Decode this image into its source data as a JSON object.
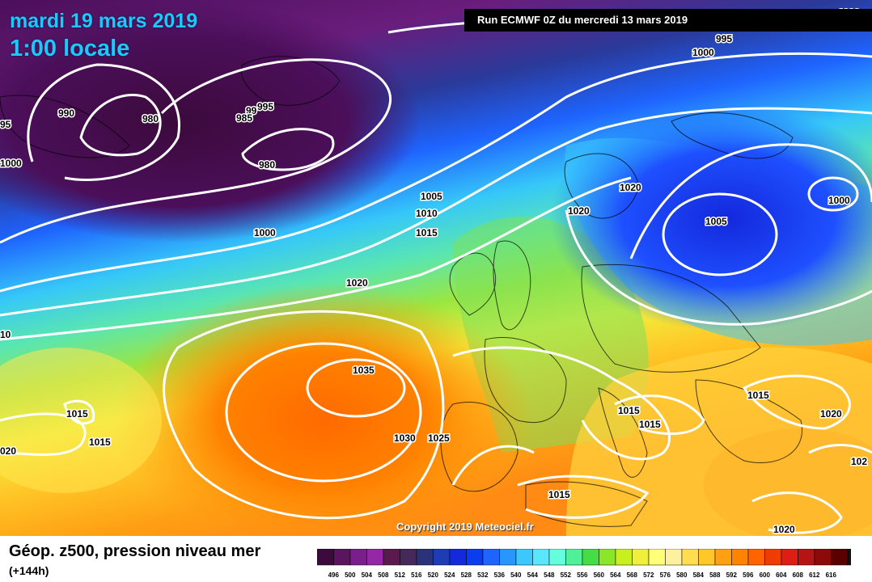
{
  "map": {
    "date": "mardi 19 mars 2019",
    "time": "1:00 locale",
    "run": "Run ECMWF 0Z du mercredi 13 mars 2019",
    "copyright": "Copyright 2019 Meteociel.fr",
    "isobar_labels": [
      "995",
      "1000",
      "990",
      "980",
      "99",
      "985",
      "995",
      "980",
      "1000",
      "95",
      "1000",
      "1005",
      "1010",
      "1015",
      "1020",
      "1020",
      "1020",
      "1005",
      "1000",
      "1000",
      "10",
      "1035",
      "1015",
      "1015",
      "1030",
      "1025",
      "020",
      "1015",
      "1015",
      "1015",
      "1020",
      "1015",
      "102",
      "1020"
    ]
  },
  "legend": {
    "title": "Géop. z500, pression niveau mer",
    "subtitle": "(+144h)",
    "scale_labels": [
      "496",
      "500",
      "504",
      "508",
      "512",
      "516",
      "520",
      "524",
      "528",
      "532",
      "536",
      "540",
      "544",
      "548",
      "552",
      "556",
      "560",
      "564",
      "568",
      "572",
      "576",
      "580",
      "584",
      "588",
      "592",
      "596",
      "600",
      "604",
      "608",
      "612",
      "616"
    ],
    "scale_colors": [
      "#3c0a3c",
      "#5a1460",
      "#7a1e8c",
      "#9628a8",
      "#5a1a50",
      "#46285a",
      "#2a3278",
      "#1e3cb4",
      "#1428dc",
      "#0a3cf0",
      "#1e64ff",
      "#2896ff",
      "#3cc8ff",
      "#5ae6ff",
      "#64ffdc",
      "#50f09a",
      "#46dc46",
      "#8ce628",
      "#c8f01e",
      "#f0f03c",
      "#ffff78",
      "#fff0a0",
      "#ffdc50",
      "#ffc828",
      "#ffa014",
      "#ff8200",
      "#ff6400",
      "#f03c00",
      "#dc1e14",
      "#b41414",
      "#8c0a0a",
      "#5a0000",
      "#111111"
    ]
  }
}
